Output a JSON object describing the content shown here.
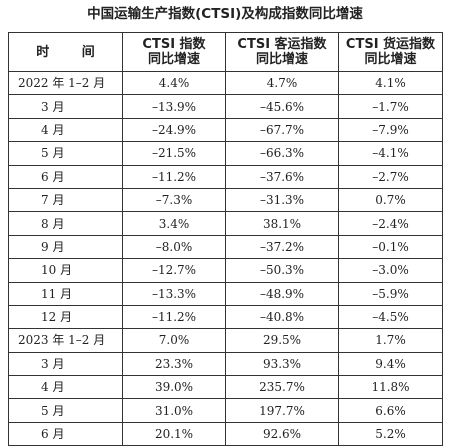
{
  "caption": "中国运输生产指数(CTSI)及构成指数同比增速",
  "table": {
    "headers": [
      {
        "lines": [
          "时 间"
        ]
      },
      {
        "lines": [
          "CTSI 指数",
          "同比增速"
        ]
      },
      {
        "lines": [
          "CTSI 客运指数",
          "同比增速"
        ]
      },
      {
        "lines": [
          "CTSI 货运指数",
          "同比增速"
        ]
      }
    ],
    "rows": [
      {
        "period": "2022 年 1–2 月",
        "kind": "yr",
        "ctsi": "4.4%",
        "passenger": "4.7%",
        "freight": "4.1%"
      },
      {
        "period": "3 月",
        "kind": "month",
        "ctsi": "–13.9%",
        "passenger": "–45.6%",
        "freight": "–1.7%"
      },
      {
        "period": "4 月",
        "kind": "month",
        "ctsi": "–24.9%",
        "passenger": "–67.7%",
        "freight": "–7.9%"
      },
      {
        "period": "5 月",
        "kind": "month",
        "ctsi": "–21.5%",
        "passenger": "–66.3%",
        "freight": "–4.1%"
      },
      {
        "period": "6 月",
        "kind": "month",
        "ctsi": "–11.2%",
        "passenger": "–37.6%",
        "freight": "–2.7%"
      },
      {
        "period": "7 月",
        "kind": "month",
        "ctsi": "–7.3%",
        "passenger": "–31.3%",
        "freight": "0.7%"
      },
      {
        "period": "8 月",
        "kind": "month",
        "ctsi": "3.4%",
        "passenger": "38.1%",
        "freight": "–2.4%"
      },
      {
        "period": "9 月",
        "kind": "month",
        "ctsi": "–8.0%",
        "passenger": "–37.2%",
        "freight": "–0.1%"
      },
      {
        "period": "10 月",
        "kind": "month",
        "ctsi": "–12.7%",
        "passenger": "–50.3%",
        "freight": "–3.0%"
      },
      {
        "period": "11 月",
        "kind": "month",
        "ctsi": "–13.3%",
        "passenger": "–48.9%",
        "freight": "–5.9%"
      },
      {
        "period": "12 月",
        "kind": "month",
        "ctsi": "–11.2%",
        "passenger": "–40.8%",
        "freight": "–4.5%"
      },
      {
        "period": "2023 年 1–2 月",
        "kind": "yr",
        "ctsi": "7.0%",
        "passenger": "29.5%",
        "freight": "1.7%"
      },
      {
        "period": "3 月",
        "kind": "month",
        "ctsi": "23.3%",
        "passenger": "93.3%",
        "freight": "9.4%"
      },
      {
        "period": "4 月",
        "kind": "month",
        "ctsi": "39.0%",
        "passenger": "235.7%",
        "freight": "11.8%"
      },
      {
        "period": "5 月",
        "kind": "month",
        "ctsi": "31.0%",
        "passenger": "197.7%",
        "freight": "6.6%"
      },
      {
        "period": "6 月",
        "kind": "month",
        "ctsi": "20.1%",
        "passenger": "92.6%",
        "freight": "5.2%"
      }
    ]
  }
}
